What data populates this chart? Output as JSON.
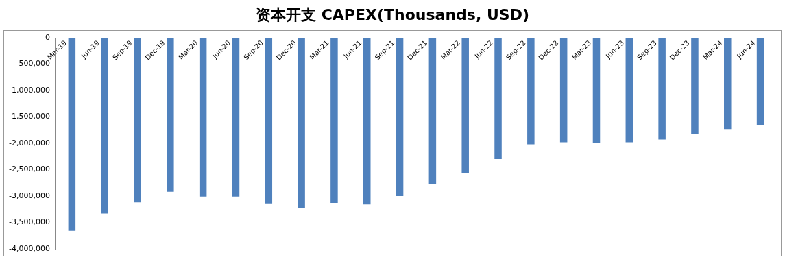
{
  "chart_data": {
    "type": "bar",
    "title": "资本开支 CAPEX(Thousands, USD)",
    "categories": [
      "Mar-19",
      "Jun-19",
      "Sep-19",
      "Dec-19",
      "Mar-20",
      "Jun-20",
      "Sep-20",
      "Dec-20",
      "Mar-21",
      "Jun-21",
      "Sep-21",
      "Dec-21",
      "Mar-22",
      "Jun-22",
      "Sep-22",
      "Dec-22",
      "Mar-23",
      "Jun-23",
      "Sep-23",
      "Dec-23",
      "Mar-24",
      "Jun-24"
    ],
    "values": [
      -3660000,
      -3330000,
      -3120000,
      -2920000,
      -3010000,
      -3010000,
      -3140000,
      -3220000,
      -3130000,
      -3160000,
      -3000000,
      -2780000,
      -2560000,
      -2300000,
      -2020000,
      -1980000,
      -1990000,
      -1980000,
      -1930000,
      -1820000,
      -1730000,
      -1660000
    ],
    "color": "#4f81bd",
    "ylim": [
      -4000000,
      0
    ],
    "yticks": [
      {
        "value": -4000000,
        "label": "-4,000,000"
      },
      {
        "value": -3500000,
        "label": "-3,500,000"
      },
      {
        "value": -3000000,
        "label": "-3,000,000"
      },
      {
        "value": -2500000,
        "label": "-2,500,000"
      },
      {
        "value": -2000000,
        "label": "-2,000,000"
      },
      {
        "value": -1500000,
        "label": "-1,500,000"
      },
      {
        "value": -1000000,
        "label": "-1,000,000"
      },
      {
        "value": -500000,
        "label": "-500,000"
      },
      0
    ],
    "grid": false,
    "legend": false
  }
}
